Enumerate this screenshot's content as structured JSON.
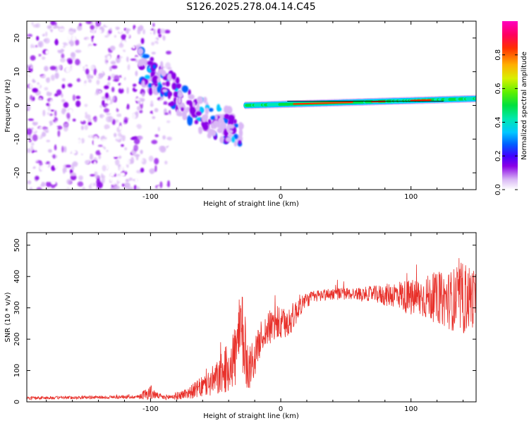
{
  "title": "S126.2025.278.04.14.C45",
  "colors": {
    "snr_line": "#e8302a",
    "axis": "#000000",
    "background": "#ffffff"
  },
  "chart_data": [
    {
      "type": "heatmap",
      "name": "spectrogram",
      "xlabel": "Height of straight line (km)",
      "ylabel": "Frequency (Hz)",
      "xlim": [
        -195,
        150
      ],
      "ylim": [
        -25,
        25
      ],
      "xticks": [
        -100,
        0,
        100
      ],
      "yticks": [
        -20,
        -10,
        0,
        10,
        20
      ],
      "xtick_labels": [
        "-100",
        "0",
        "100"
      ],
      "ytick_labels": [
        "-20",
        "-10",
        "0",
        "10",
        "20"
      ],
      "colorbar": {
        "label": "Normalized spectral amplitude",
        "range": [
          0,
          1
        ],
        "ticks": [
          0.0,
          0.2,
          0.4,
          0.6,
          0.8
        ],
        "tick_labels": [
          "0.0",
          "0.2",
          "0.4",
          "0.6",
          "0.8"
        ]
      },
      "features": [
        {
          "name": "noise_region",
          "x_range": [
            -195,
            -105
          ],
          "freq_range": [
            -25,
            25
          ],
          "amplitude": 0.1
        },
        {
          "name": "sparse_noise",
          "x_range": [
            -100,
            -85
          ],
          "freq_range": [
            -25,
            25
          ],
          "amplitude": 0.1
        },
        {
          "name": "descending_signal",
          "points": [
            [
              -108,
              12
            ],
            [
              -100,
              9
            ],
            [
              -92,
              8
            ],
            [
              -80,
              3
            ],
            [
              -70,
              -1
            ],
            [
              -60,
              -3
            ],
            [
              -50,
              -5
            ],
            [
              -40,
              -6
            ],
            [
              -30,
              -9
            ]
          ],
          "amplitude": 0.4
        },
        {
          "name": "steady_tone",
          "x_range": [
            -27,
            150
          ],
          "freq_start": 0,
          "freq_end": 2,
          "amplitude": 0.9
        }
      ]
    },
    {
      "type": "line",
      "name": "snr",
      "xlabel": "Height of straight line (km)",
      "ylabel": "SNR (10 * v/v)",
      "xlim": [
        -195,
        150
      ],
      "ylim": [
        0,
        540
      ],
      "xticks": [
        -100,
        0,
        100
      ],
      "yticks": [
        0,
        100,
        200,
        300,
        400,
        500
      ],
      "xtick_labels": [
        "-100",
        "0",
        "100"
      ],
      "ytick_labels": [
        "0",
        "100",
        "200",
        "300",
        "400",
        "500"
      ],
      "envelope_x": [
        -195,
        -150,
        -110,
        -100,
        -95,
        -90,
        -80,
        -70,
        -60,
        -50,
        -40,
        -35,
        -30,
        -25,
        -20,
        -15,
        -10,
        -5,
        0,
        5,
        10,
        15,
        20,
        25,
        30,
        40,
        50,
        60,
        70,
        80,
        90,
        100,
        110,
        120,
        130,
        140,
        150
      ],
      "envelope_y": [
        12,
        14,
        16,
        30,
        20,
        14,
        18,
        30,
        48,
        70,
        110,
        150,
        220,
        110,
        140,
        210,
        230,
        250,
        245,
        250,
        275,
        310,
        325,
        335,
        340,
        345,
        345,
        345,
        345,
        340,
        345,
        330,
        335,
        330,
        325,
        330,
        335
      ],
      "noise_amplitude": [
        5,
        5,
        6,
        25,
        10,
        8,
        12,
        20,
        35,
        55,
        80,
        110,
        150,
        80,
        60,
        50,
        55,
        60,
        55,
        50,
        45,
        35,
        25,
        20,
        20,
        20,
        20,
        20,
        25,
        35,
        45,
        60,
        70,
        80,
        95,
        120,
        90
      ]
    }
  ]
}
